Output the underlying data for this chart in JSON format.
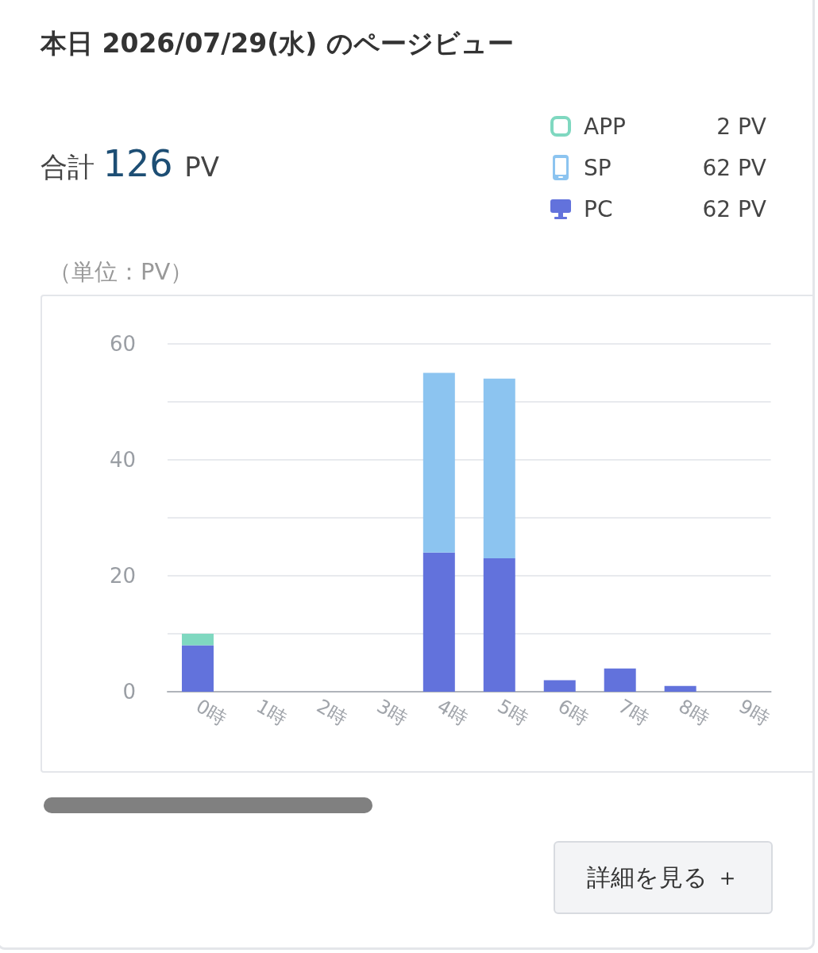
{
  "chart_data": {
    "type": "bar",
    "title": "本日 2026/07/29(水) のページビュー",
    "ylabel": "（単位：PV）",
    "categories": [
      "0時",
      "1時",
      "2時",
      "3時",
      "4時",
      "5時",
      "6時",
      "7時",
      "8時",
      "9時"
    ],
    "series": [
      {
        "name": "PC",
        "color": "#6272dc",
        "values": [
          8,
          0,
          0,
          0,
          24,
          23,
          2,
          4,
          1,
          0
        ]
      },
      {
        "name": "SP",
        "color": "#8cc4f0",
        "values": [
          0,
          0,
          0,
          0,
          31,
          31,
          0,
          0,
          0,
          0
        ]
      },
      {
        "name": "APP",
        "color": "#7fd8c0",
        "values": [
          2,
          0,
          0,
          0,
          0,
          0,
          0,
          0,
          0,
          0
        ]
      }
    ],
    "stacked": true,
    "ylim": [
      0,
      60
    ],
    "yticks": [
      0,
      {
        "value": 10,
        "label": null
      },
      20,
      {
        "value": 30,
        "label": null
      },
      40,
      {
        "value": 50,
        "label": null
      },
      60
    ],
    "grid": "y",
    "legend": "top right",
    "annotations": [
      "合計 126 PV",
      "62 PV",
      "62 PV",
      "2 PV",
      "詳細を見る ＋"
    ]
  }
}
